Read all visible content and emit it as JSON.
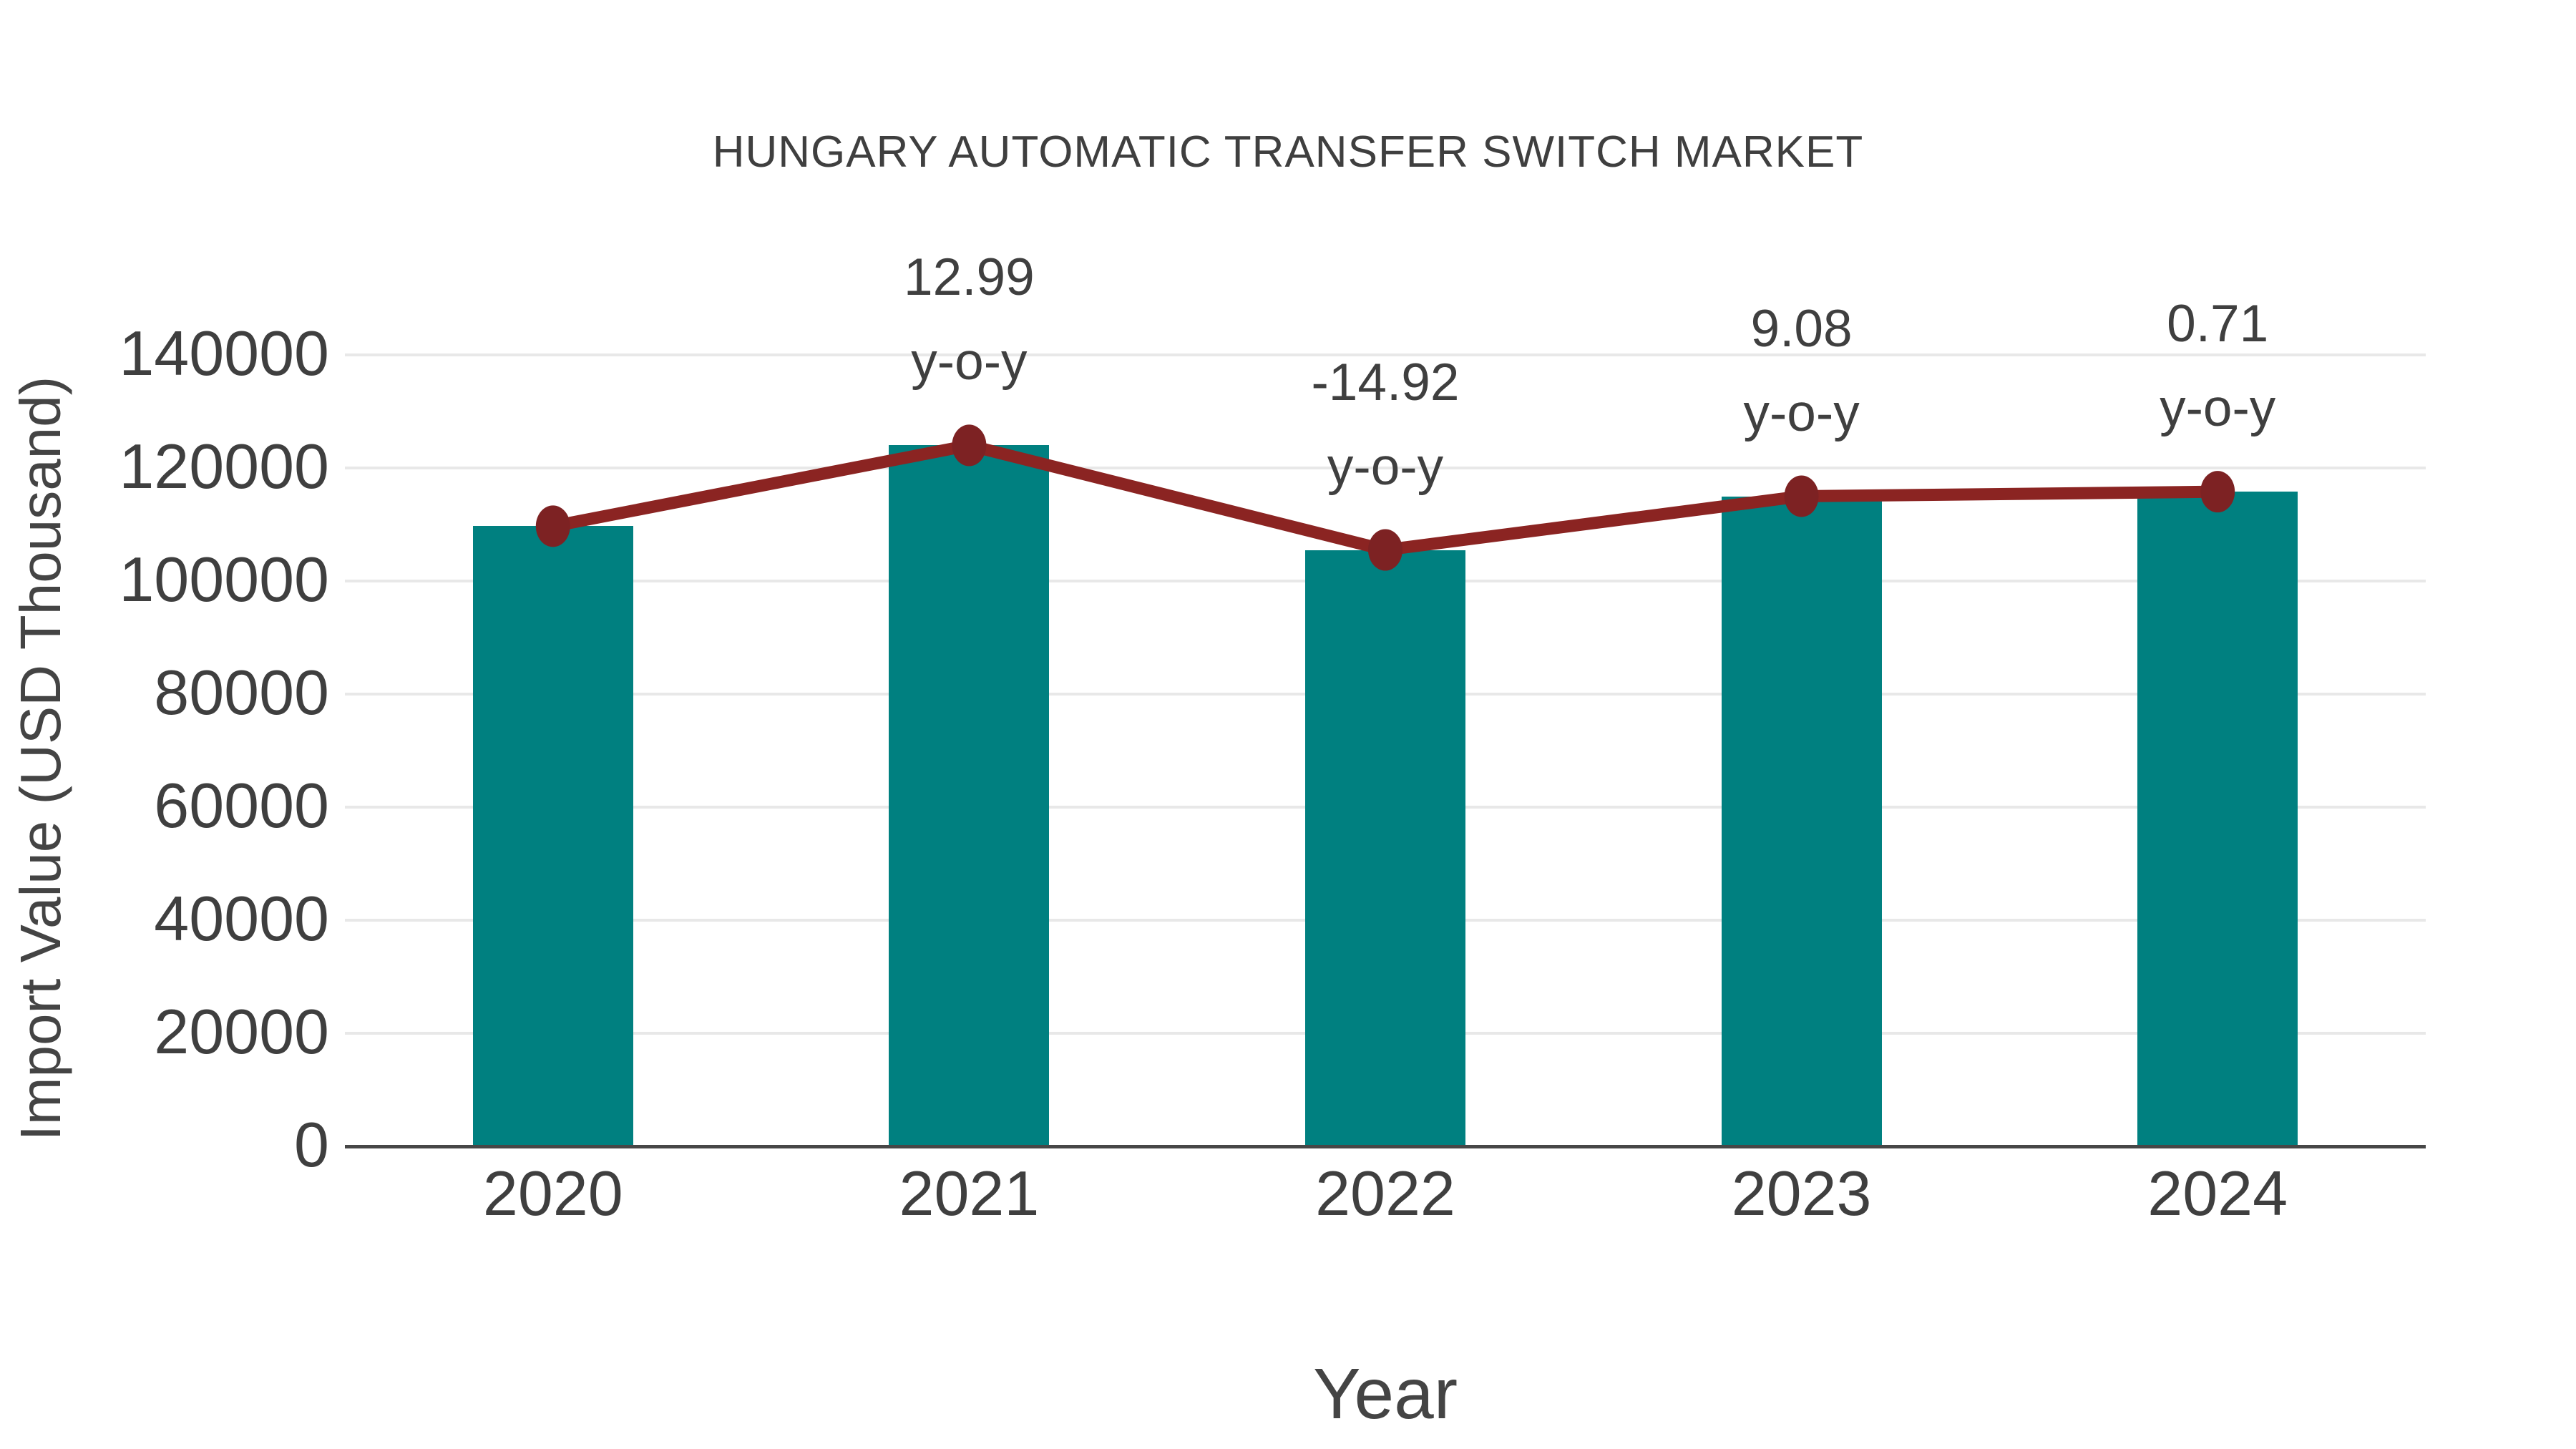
{
  "chart_data": {
    "type": "bar",
    "title": "HUNGARY AUTOMATIC TRANSFER SWITCH MARKET",
    "xlabel": "Year",
    "ylabel": "Import Value (USD Thousand)",
    "categories": [
      "2020",
      "2021",
      "2022",
      "2023",
      "2024"
    ],
    "series": [
      {
        "name": "Import Value (USD Thousand)",
        "type": "bar",
        "color": "#008080",
        "values": [
          109700,
          124000,
          105500,
          115000,
          115800
        ]
      },
      {
        "name": "y-o-y growth",
        "type": "line",
        "color": "#8b2422",
        "marker_color": "#7d2223",
        "values_pct": [
          null,
          12.99,
          -14.92,
          9.08,
          0.71
        ]
      }
    ],
    "annotations": [
      {
        "category": "2021",
        "line1": "12.99",
        "line2": "y-o-y"
      },
      {
        "category": "2022",
        "line1": "-14.92",
        "line2": "y-o-y"
      },
      {
        "category": "2023",
        "line1": "9.08",
        "line2": "y-o-y"
      },
      {
        "category": "2024",
        "line1": "0.71",
        "line2": "y-o-y"
      }
    ],
    "yticks": [
      0,
      20000,
      40000,
      60000,
      80000,
      100000,
      120000,
      140000
    ],
    "ylim": [
      0,
      150000
    ],
    "grid": true,
    "legend_position": "none",
    "colors": {
      "bar": "#008080",
      "line": "#8b2422",
      "marker": "#7d2223",
      "gridline": "#e8e8e8",
      "axis_line": "#474747",
      "text": "#3f3f3f"
    }
  }
}
